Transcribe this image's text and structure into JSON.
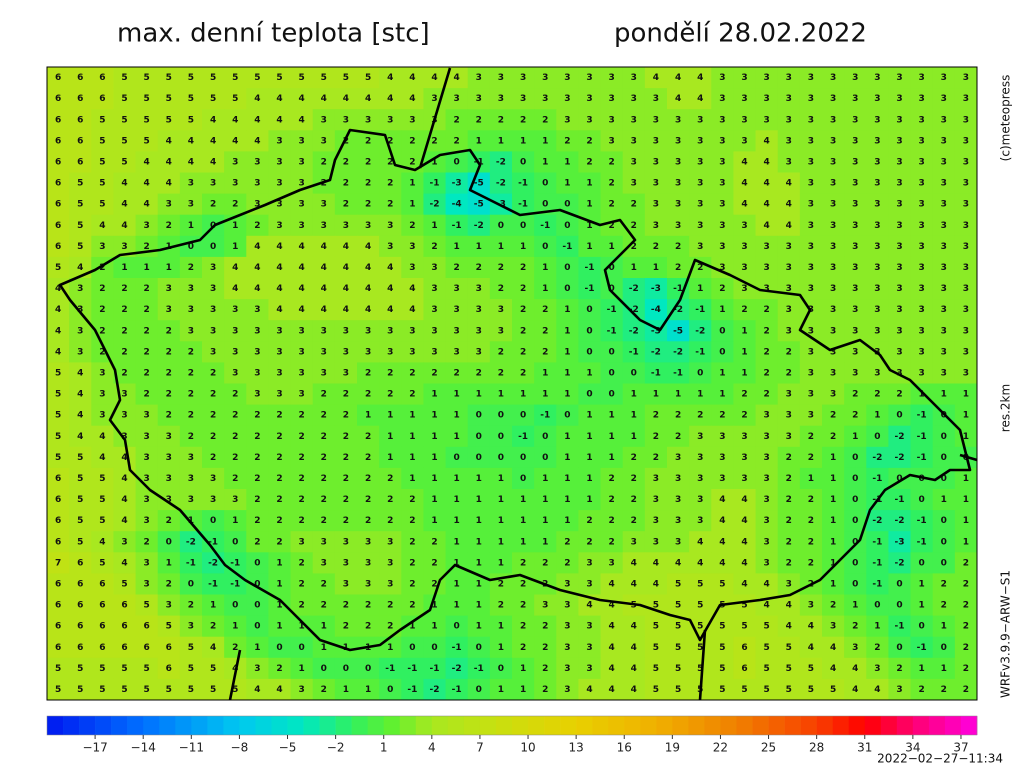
{
  "header": {
    "title": "max. denní teplota [stc]",
    "date": "pondělí 28.02.2022"
  },
  "side_labels": [
    "(c)meteopress",
    "res.2km",
    "WRFv3.9.9−ARW−S1"
  ],
  "timestamp": "2022−02−27−11:34",
  "grid": {
    "rows": [
      [
        6,
        6,
        6,
        5,
        5,
        5,
        5,
        5,
        5,
        5,
        5,
        5,
        5,
        5,
        5,
        4,
        4,
        4,
        4,
        3,
        3,
        3,
        3,
        3,
        3,
        3,
        3,
        4,
        4,
        4,
        3,
        3,
        3,
        3,
        3,
        3,
        3,
        3,
        3,
        3,
        3,
        3
      ],
      [
        6,
        6,
        6,
        5,
        5,
        5,
        5,
        5,
        5,
        4,
        4,
        4,
        4,
        4,
        4,
        4,
        4,
        3,
        3,
        3,
        3,
        3,
        3,
        3,
        3,
        3,
        3,
        3,
        4,
        4,
        3,
        3,
        3,
        3,
        3,
        3,
        3,
        3,
        3,
        3,
        3,
        3
      ],
      [
        6,
        6,
        5,
        5,
        5,
        5,
        5,
        4,
        4,
        4,
        4,
        4,
        3,
        3,
        3,
        3,
        3,
        3,
        2,
        2,
        2,
        2,
        2,
        3,
        3,
        3,
        3,
        3,
        3,
        3,
        3,
        3,
        3,
        3,
        3,
        3,
        3,
        3,
        3,
        3,
        3,
        3
      ],
      [
        6,
        6,
        5,
        5,
        5,
        4,
        4,
        4,
        4,
        4,
        3,
        3,
        3,
        2,
        2,
        2,
        2,
        2,
        2,
        1,
        1,
        1,
        1,
        2,
        2,
        3,
        3,
        3,
        3,
        3,
        3,
        3,
        4,
        3,
        3,
        3,
        3,
        3,
        3,
        3,
        3,
        3
      ],
      [
        6,
        6,
        5,
        5,
        4,
        4,
        4,
        4,
        3,
        3,
        3,
        3,
        2,
        2,
        2,
        2,
        2,
        1,
        0,
        -1,
        -2,
        0,
        1,
        1,
        2,
        2,
        3,
        3,
        3,
        3,
        3,
        4,
        4,
        3,
        3,
        3,
        3,
        3,
        3,
        3,
        3,
        3
      ],
      [
        6,
        5,
        5,
        4,
        4,
        4,
        3,
        3,
        3,
        3,
        3,
        3,
        2,
        2,
        2,
        2,
        1,
        -1,
        -3,
        -5,
        -2,
        -1,
        0,
        1,
        1,
        2,
        3,
        3,
        3,
        3,
        3,
        4,
        4,
        4,
        3,
        3,
        3,
        3,
        3,
        3,
        3,
        3
      ],
      [
        6,
        5,
        5,
        4,
        4,
        3,
        3,
        2,
        2,
        3,
        3,
        3,
        3,
        2,
        2,
        2,
        1,
        -2,
        -4,
        -5,
        -3,
        -1,
        0,
        0,
        1,
        2,
        2,
        3,
        3,
        3,
        3,
        4,
        4,
        4,
        3,
        3,
        3,
        3,
        3,
        3,
        3,
        3
      ],
      [
        6,
        5,
        4,
        4,
        3,
        2,
        1,
        0,
        1,
        2,
        3,
        3,
        3,
        3,
        3,
        3,
        2,
        1,
        -1,
        -2,
        0,
        0,
        -1,
        0,
        1,
        2,
        2,
        3,
        3,
        3,
        3,
        3,
        4,
        4,
        3,
        3,
        3,
        3,
        3,
        3,
        3,
        3
      ],
      [
        6,
        5,
        3,
        3,
        2,
        1,
        0,
        0,
        1,
        4,
        4,
        4,
        4,
        4,
        4,
        3,
        3,
        2,
        1,
        1,
        1,
        1,
        0,
        -1,
        1,
        1,
        2,
        2,
        2,
        3,
        3,
        3,
        3,
        3,
        3,
        3,
        3,
        3,
        3,
        3,
        3,
        3
      ],
      [
        5,
        4,
        2,
        1,
        1,
        1,
        2,
        3,
        4,
        4,
        4,
        4,
        4,
        4,
        4,
        4,
        3,
        3,
        2,
        2,
        2,
        2,
        1,
        0,
        -1,
        0,
        1,
        1,
        2,
        2,
        3,
        3,
        3,
        3,
        3,
        3,
        3,
        3,
        3,
        3,
        3,
        3
      ],
      [
        4,
        3,
        2,
        2,
        2,
        3,
        3,
        3,
        4,
        4,
        4,
        4,
        4,
        4,
        4,
        4,
        4,
        3,
        3,
        3,
        2,
        2,
        1,
        0,
        -1,
        0,
        -2,
        -3,
        -1,
        1,
        2,
        3,
        3,
        3,
        3,
        3,
        3,
        3,
        3,
        3,
        3,
        3
      ],
      [
        4,
        3,
        2,
        2,
        2,
        3,
        3,
        3,
        3,
        3,
        4,
        4,
        4,
        4,
        4,
        4,
        4,
        3,
        3,
        3,
        3,
        2,
        2,
        1,
        0,
        -1,
        -2,
        -4,
        -2,
        -1,
        1,
        2,
        2,
        3,
        3,
        3,
        3,
        3,
        3,
        3,
        3,
        3
      ],
      [
        4,
        3,
        2,
        2,
        2,
        2,
        3,
        3,
        3,
        3,
        3,
        3,
        3,
        3,
        3,
        3,
        3,
        3,
        3,
        3,
        3,
        2,
        2,
        1,
        0,
        -1,
        -2,
        -3,
        -5,
        -2,
        0,
        1,
        2,
        3,
        3,
        3,
        3,
        3,
        3,
        3,
        3,
        3
      ],
      [
        4,
        3,
        2,
        2,
        2,
        2,
        2,
        3,
        3,
        3,
        3,
        3,
        3,
        3,
        3,
        3,
        3,
        3,
        3,
        3,
        2,
        2,
        2,
        1,
        0,
        0,
        -1,
        -2,
        -2,
        -1,
        0,
        1,
        2,
        2,
        3,
        3,
        3,
        3,
        3,
        3,
        3,
        3
      ],
      [
        5,
        4,
        3,
        2,
        2,
        2,
        2,
        2,
        3,
        3,
        3,
        3,
        3,
        3,
        2,
        2,
        2,
        2,
        2,
        2,
        2,
        2,
        1,
        1,
        1,
        0,
        0,
        -1,
        -1,
        0,
        1,
        1,
        2,
        2,
        3,
        3,
        3,
        3,
        3,
        3,
        3,
        3
      ],
      [
        5,
        4,
        3,
        3,
        2,
        2,
        2,
        2,
        2,
        3,
        3,
        3,
        2,
        2,
        2,
        2,
        2,
        1,
        1,
        1,
        1,
        1,
        1,
        1,
        0,
        0,
        1,
        1,
        1,
        1,
        1,
        2,
        2,
        3,
        3,
        3,
        2,
        2,
        2,
        1,
        1,
        1
      ],
      [
        5,
        4,
        3,
        3,
        3,
        2,
        2,
        2,
        2,
        2,
        2,
        2,
        2,
        2,
        1,
        1,
        1,
        1,
        1,
        0,
        0,
        0,
        -1,
        0,
        1,
        1,
        1,
        2,
        2,
        2,
        2,
        2,
        3,
        3,
        3,
        2,
        2,
        1,
        0,
        -1,
        0,
        1
      ],
      [
        5,
        4,
        4,
        3,
        3,
        3,
        2,
        2,
        2,
        2,
        2,
        2,
        2,
        2,
        2,
        1,
        1,
        1,
        1,
        0,
        0,
        -1,
        0,
        1,
        1,
        1,
        1,
        2,
        2,
        3,
        3,
        3,
        3,
        3,
        2,
        2,
        1,
        0,
        -2,
        -1,
        0,
        1
      ],
      [
        5,
        5,
        4,
        4,
        3,
        3,
        3,
        2,
        2,
        2,
        2,
        2,
        2,
        2,
        2,
        1,
        1,
        1,
        0,
        0,
        0,
        0,
        0,
        1,
        1,
        1,
        2,
        2,
        3,
        3,
        3,
        3,
        3,
        2,
        2,
        1,
        0,
        -2,
        -2,
        -1,
        0,
        0
      ],
      [
        6,
        5,
        5,
        4,
        3,
        3,
        3,
        3,
        2,
        2,
        2,
        2,
        2,
        2,
        2,
        2,
        1,
        1,
        1,
        1,
        1,
        0,
        1,
        1,
        1,
        2,
        2,
        3,
        3,
        3,
        3,
        3,
        3,
        2,
        1,
        1,
        0,
        -1,
        0,
        0,
        0,
        1
      ],
      [
        6,
        5,
        5,
        4,
        3,
        3,
        3,
        3,
        3,
        2,
        2,
        2,
        2,
        2,
        2,
        2,
        2,
        1,
        1,
        1,
        1,
        1,
        1,
        1,
        1,
        2,
        2,
        3,
        3,
        3,
        4,
        4,
        3,
        2,
        2,
        1,
        0,
        -1,
        -1,
        0,
        1,
        1
      ],
      [
        6,
        5,
        5,
        4,
        3,
        2,
        1,
        0,
        1,
        2,
        2,
        2,
        2,
        2,
        2,
        2,
        2,
        1,
        1,
        1,
        1,
        1,
        1,
        1,
        2,
        2,
        2,
        3,
        3,
        3,
        4,
        4,
        3,
        2,
        2,
        1,
        0,
        -2,
        -2,
        -1,
        0,
        1
      ],
      [
        6,
        5,
        4,
        3,
        2,
        0,
        -2,
        -1,
        0,
        2,
        2,
        3,
        3,
        3,
        3,
        3,
        2,
        2,
        1,
        1,
        1,
        1,
        1,
        2,
        2,
        2,
        3,
        3,
        3,
        4,
        4,
        4,
        3,
        2,
        2,
        1,
        0,
        -1,
        -3,
        -1,
        0,
        1
      ],
      [
        7,
        6,
        5,
        4,
        3,
        1,
        -1,
        -2,
        -1,
        0,
        1,
        2,
        3,
        3,
        3,
        3,
        2,
        2,
        1,
        1,
        1,
        2,
        2,
        2,
        3,
        3,
        4,
        4,
        4,
        4,
        4,
        4,
        3,
        2,
        2,
        1,
        0,
        -1,
        -2,
        0,
        0,
        2
      ],
      [
        6,
        6,
        6,
        5,
        3,
        2,
        0,
        -1,
        -1,
        0,
        1,
        2,
        2,
        3,
        3,
        3,
        2,
        2,
        1,
        1,
        2,
        2,
        2,
        3,
        3,
        4,
        4,
        4,
        5,
        5,
        5,
        4,
        4,
        3,
        2,
        1,
        0,
        -1,
        0,
        1,
        2,
        2
      ],
      [
        6,
        6,
        6,
        6,
        5,
        3,
        2,
        1,
        0,
        0,
        1,
        2,
        2,
        2,
        2,
        2,
        2,
        1,
        1,
        1,
        2,
        2,
        3,
        3,
        4,
        4,
        5,
        5,
        5,
        5,
        5,
        5,
        4,
        4,
        3,
        2,
        1,
        0,
        0,
        1,
        2,
        2
      ],
      [
        6,
        6,
        6,
        6,
        6,
        5,
        3,
        2,
        1,
        0,
        1,
        1,
        1,
        2,
        2,
        2,
        1,
        1,
        0,
        1,
        1,
        2,
        2,
        3,
        3,
        4,
        4,
        5,
        5,
        5,
        5,
        5,
        5,
        4,
        4,
        3,
        2,
        1,
        -1,
        0,
        1,
        2
      ],
      [
        6,
        6,
        6,
        6,
        6,
        6,
        5,
        4,
        2,
        1,
        0,
        0,
        1,
        1,
        1,
        1,
        0,
        0,
        -1,
        0,
        1,
        2,
        2,
        3,
        3,
        4,
        4,
        5,
        5,
        5,
        5,
        6,
        5,
        5,
        4,
        4,
        3,
        2,
        0,
        -1,
        0,
        2
      ],
      [
        5,
        5,
        5,
        5,
        5,
        6,
        5,
        5,
        4,
        3,
        2,
        1,
        0,
        0,
        0,
        -1,
        -1,
        -1,
        -2,
        -1,
        0,
        1,
        2,
        3,
        3,
        4,
        4,
        5,
        5,
        5,
        5,
        6,
        5,
        5,
        5,
        4,
        4,
        3,
        2,
        1,
        1,
        2
      ],
      [
        5,
        5,
        5,
        5,
        5,
        5,
        5,
        5,
        5,
        4,
        4,
        3,
        2,
        1,
        1,
        0,
        -1,
        -2,
        -1,
        0,
        1,
        1,
        2,
        3,
        4,
        4,
        4,
        5,
        5,
        5,
        5,
        5,
        5,
        5,
        5,
        5,
        4,
        4,
        3,
        2,
        2,
        2
      ]
    ]
  },
  "colorbar": {
    "lim": [
      -20,
      38
    ],
    "stops": [
      {
        "value": -20,
        "color": "#0018f0"
      },
      {
        "value": -14,
        "color": "#0070ff"
      },
      {
        "value": -8,
        "color": "#00c8f0"
      },
      {
        "value": -4,
        "color": "#00e8c0"
      },
      {
        "value": -1,
        "color": "#30f060"
      },
      {
        "value": 1.5,
        "color": "#60f030"
      },
      {
        "value": 4,
        "color": "#a8e820"
      },
      {
        "value": 8,
        "color": "#c8e010"
      },
      {
        "value": 13,
        "color": "#e8d000"
      },
      {
        "value": 18,
        "color": "#f0b000"
      },
      {
        "value": 23,
        "color": "#f08000"
      },
      {
        "value": 28,
        "color": "#f84000"
      },
      {
        "value": 31,
        "color": "#ff0000"
      },
      {
        "value": 34,
        "color": "#ff0070"
      },
      {
        "value": 38,
        "color": "#ff00e0"
      }
    ],
    "ticks": [
      {
        "value": -17,
        "label": "−17"
      },
      {
        "value": -14,
        "label": "−14"
      },
      {
        "value": -11,
        "label": "−11"
      },
      {
        "value": -8,
        "label": "−8"
      },
      {
        "value": -5,
        "label": "−5"
      },
      {
        "value": -2,
        "label": "−2"
      },
      1,
      4,
      7,
      10,
      13,
      16,
      19,
      22,
      25,
      28,
      31,
      34,
      37
    ]
  }
}
